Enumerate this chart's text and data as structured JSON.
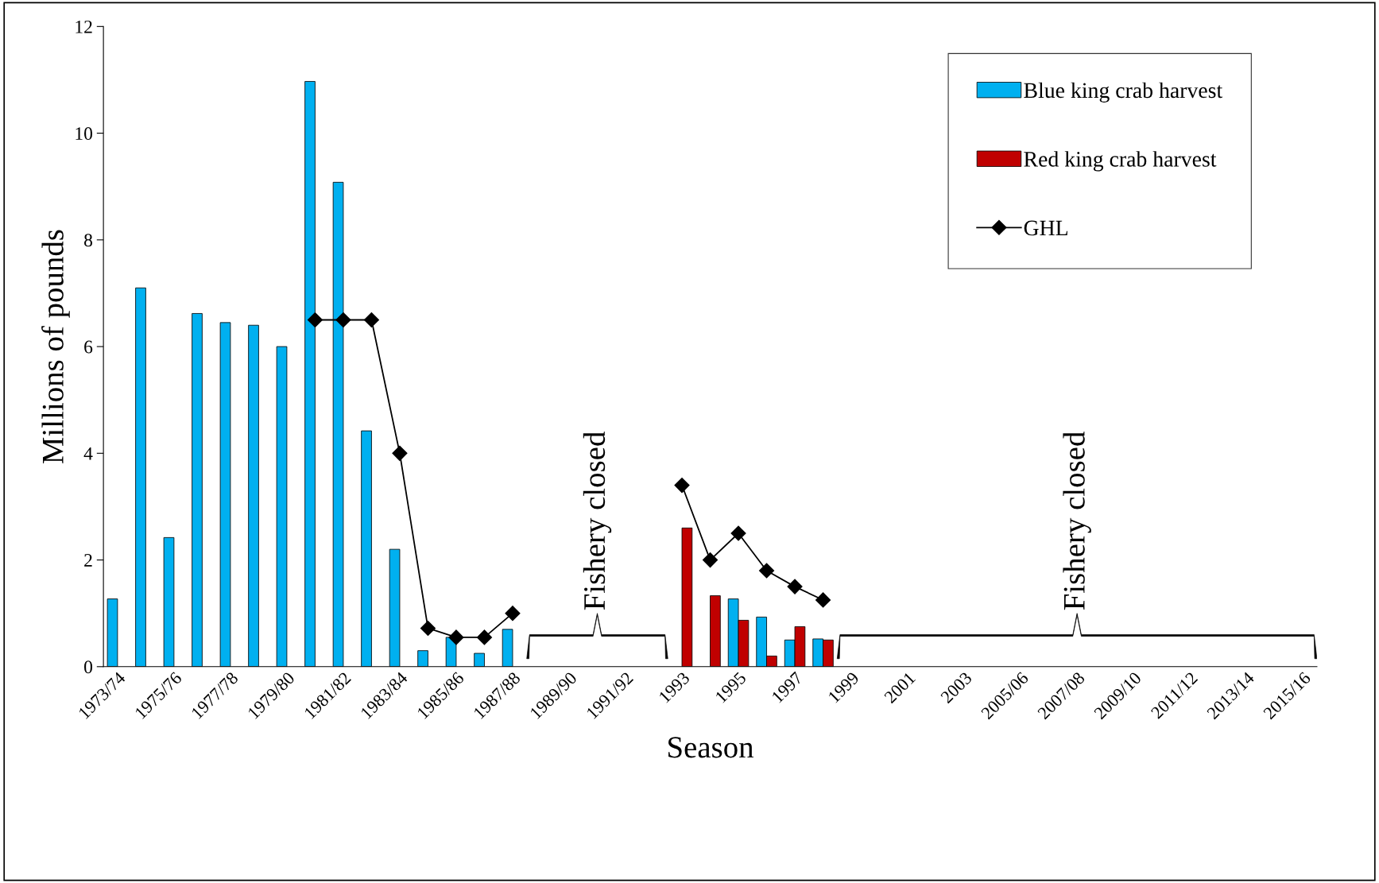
{
  "chart_data": {
    "type": "bar",
    "xlabel": "Season",
    "ylabel": "Millions of pounds",
    "categories": [
      "1973/74",
      null,
      "1975/76",
      null,
      "1977/78",
      null,
      "1979/80",
      null,
      "1981/82",
      null,
      "1983/84",
      null,
      "1985/86",
      null,
      "1987/88",
      null,
      "1989/90",
      null,
      "1991/92",
      null,
      "1993",
      null,
      "1995",
      null,
      "1997",
      null,
      "1999",
      null,
      "2001",
      null,
      "2003",
      null,
      "2005/06",
      null,
      "2007/08",
      null,
      "2009/10",
      null,
      "2011/12",
      null,
      "2013/14",
      null,
      "2015/16"
    ],
    "series": [
      {
        "name": "Blue king crab harvest",
        "color": "#00b0f0",
        "values": [
          1.27,
          7.1,
          2.42,
          6.62,
          6.45,
          6.4,
          6.0,
          10.97,
          9.08,
          4.42,
          2.2,
          0.3,
          0.55,
          0.25,
          0.7,
          null,
          null,
          null,
          null,
          null,
          null,
          null,
          1.27,
          0.93,
          0.5,
          0.52,
          null,
          null,
          null,
          null,
          null,
          null,
          null,
          null,
          null,
          null,
          null,
          null,
          null,
          null,
          null,
          null,
          null
        ]
      },
      {
        "name": "Red king crab harvest",
        "color": "#c00000",
        "values": [
          null,
          null,
          null,
          null,
          null,
          null,
          null,
          null,
          null,
          null,
          null,
          null,
          null,
          null,
          null,
          null,
          null,
          null,
          null,
          null,
          2.6,
          1.33,
          0.87,
          0.2,
          0.75,
          0.5,
          null,
          null,
          null,
          null,
          null,
          null,
          null,
          null,
          null,
          null,
          null,
          null,
          null,
          null,
          null,
          null,
          null
        ]
      },
      {
        "name": "GHL",
        "type": "line",
        "color": "#000000",
        "marker": "diamond",
        "values": [
          null,
          null,
          null,
          null,
          null,
          null,
          null,
          6.5,
          6.5,
          6.5,
          4.0,
          0.72,
          0.55,
          0.55,
          1.0,
          null,
          null,
          null,
          null,
          null,
          3.4,
          2.0,
          2.5,
          1.8,
          1.5,
          1.25,
          null,
          null,
          null,
          null,
          null,
          null,
          null,
          null,
          null,
          null,
          null,
          null,
          null,
          null,
          null,
          null,
          null
        ]
      }
    ],
    "ylim": [
      0,
      12
    ],
    "yticks": [
      0,
      2,
      4,
      6,
      8,
      10,
      12
    ],
    "grid": false,
    "legend": "top right",
    "annotations": [
      "Fishery closed",
      "Fishery closed"
    ]
  }
}
